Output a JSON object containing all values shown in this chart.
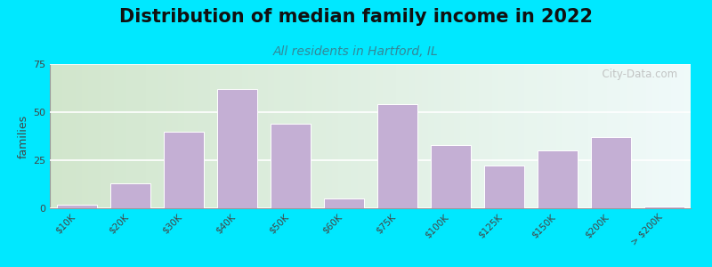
{
  "title": "Distribution of median family income in 2022",
  "subtitle": "All residents in Hartford, IL",
  "ylabel": "families",
  "categories": [
    "$10K",
    "$20K",
    "$30K",
    "$40K",
    "$50K",
    "$60K",
    "$75K",
    "$100K",
    "$125K",
    "$150K",
    "$200K",
    "> $200K"
  ],
  "values": [
    2,
    13,
    40,
    62,
    44,
    5,
    54,
    33,
    22,
    30,
    37,
    1
  ],
  "bar_color": "#c4afd4",
  "bar_edge_color": "#ffffff",
  "ylim": [
    0,
    75
  ],
  "yticks": [
    0,
    25,
    50,
    75
  ],
  "bg_outer": "#00e8ff",
  "bg_plot_left": "#d8eec8",
  "bg_plot_right": "#f0f0e8",
  "title_fontsize": 15,
  "subtitle_fontsize": 10,
  "subtitle_color": "#338899",
  "watermark": "  City-Data.com"
}
